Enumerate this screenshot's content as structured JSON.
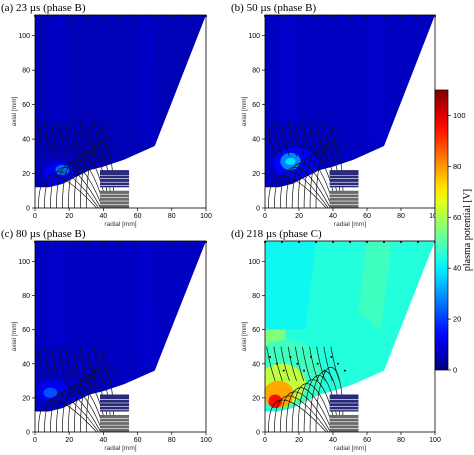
{
  "chart_data": {
    "type": "heatmap",
    "panels": [
      {
        "title": "(a) 23 µs (phase B)",
        "field": "low_a",
        "xlabel": "radial [mm]",
        "ylabel": "axial [mm]",
        "xlim": [
          0,
          100
        ],
        "ylim": [
          0,
          112
        ],
        "xticks": [
          0,
          20,
          40,
          60,
          80,
          100
        ],
        "yticks": [
          0,
          20,
          40,
          60,
          80,
          100
        ]
      },
      {
        "title": "(b) 50 µs (phase B)",
        "field": "low_b",
        "xlabel": "radial [mm]",
        "ylabel": "axial [mm]",
        "xlim": [
          0,
          100
        ],
        "ylim": [
          0,
          112
        ],
        "xticks": [
          0,
          20,
          40,
          60,
          80,
          100
        ],
        "yticks": [
          0,
          20,
          40,
          60,
          80,
          100
        ]
      },
      {
        "title": "(c) 80 µs (phase B)",
        "field": "low_c",
        "xlabel": "radial [mm]",
        "ylabel": "axial [mm]",
        "xlim": [
          0,
          100
        ],
        "ylim": [
          0,
          112
        ],
        "xticks": [
          0,
          20,
          40,
          60,
          80,
          100
        ],
        "yticks": [
          0,
          20,
          40,
          60,
          80,
          100
        ]
      },
      {
        "title": "(d) 218 µs (phase C)",
        "field": "high",
        "xlabel": "radial [mm]",
        "ylabel": "axial [mm]",
        "xlim": [
          0,
          100
        ],
        "ylim": [
          0,
          112
        ],
        "xticks": [
          0,
          20,
          40,
          60,
          80,
          100
        ],
        "yticks": [
          0,
          20,
          40,
          60,
          80,
          100
        ]
      }
    ],
    "colorbar": {
      "label": "plasma potential [V]",
      "range": [
        0,
        110
      ],
      "ticks": [
        0,
        20,
        40,
        60,
        80,
        100
      ],
      "colormap": "jet"
    },
    "levels": {
      "low_a": [
        {
          "v": 12,
          "x": 14,
          "y": 20,
          "rx": 9,
          "ry": 7
        },
        {
          "v": 25,
          "x": 16,
          "y": 22,
          "rx": 4,
          "ry": 3
        }
      ],
      "low_b": [
        {
          "v": 14,
          "x": 18,
          "y": 26,
          "rx": 13,
          "ry": 9
        },
        {
          "v": 28,
          "x": 15,
          "y": 27,
          "rx": 6,
          "ry": 5
        },
        {
          "v": 38,
          "x": 15,
          "y": 27,
          "rx": 3,
          "ry": 2
        }
      ],
      "low_c": [
        {
          "v": 12,
          "x": 10,
          "y": 24,
          "rx": 9,
          "ry": 7
        },
        {
          "v": 22,
          "x": 9,
          "y": 23,
          "rx": 4,
          "ry": 3
        },
        {
          "v": 12,
          "x": 24,
          "y": 18,
          "rx": 5,
          "ry": 3
        }
      ],
      "high": [
        {
          "v": 48,
          "x": 12,
          "y": 34,
          "rx": 22,
          "ry": 20
        },
        {
          "v": 62,
          "x": 10,
          "y": 28,
          "rx": 14,
          "ry": 12
        },
        {
          "v": 78,
          "x": 8,
          "y": 22,
          "rx": 9,
          "ry": 8
        },
        {
          "v": 95,
          "x": 6,
          "y": 18,
          "rx": 4,
          "ry": 4
        }
      ]
    }
  },
  "colors": {
    "background": "#ffffff",
    "magnet_dark": "#2a2a7a",
    "magnet_grey": "#6a6a6a",
    "streamline": "#111111"
  }
}
